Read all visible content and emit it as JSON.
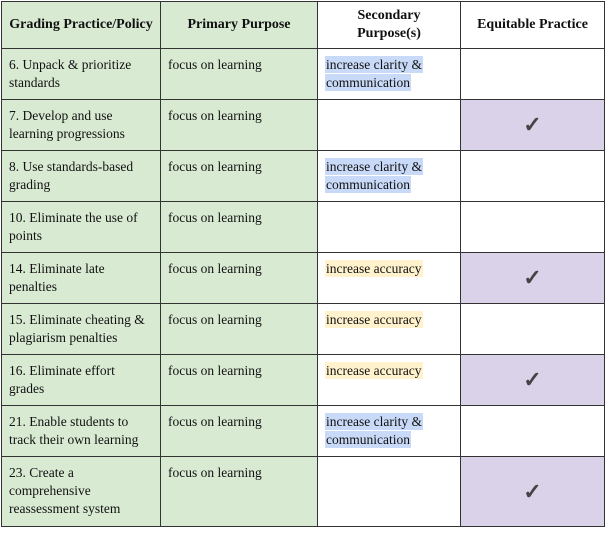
{
  "table": {
    "header": [
      "Grading Practice/Policy",
      "Primary Purpose",
      "Secondary Purpose(s)",
      "Equitable Practice"
    ],
    "rows": [
      {
        "policy": "6. Unpack & prioritize standards",
        "primary": "focus on learning",
        "secondary": "increase clarity & communication",
        "highlight": "#c9daf8",
        "equitable": null
      },
      {
        "policy": "7. Develop and use learning progressions",
        "primary": "focus on learning",
        "secondary": null,
        "highlight": null,
        "equitable": "✓"
      },
      {
        "policy": "8. Use standards-based grading",
        "primary": "focus on learning",
        "secondary": "increase clarity & communication",
        "highlight": "#c9daf8",
        "equitable": null
      },
      {
        "policy": "10. Eliminate the use of points",
        "primary": "focus on learning",
        "secondary": null,
        "highlight": null,
        "equitable": null
      },
      {
        "policy": "14. Eliminate late penalties",
        "primary": "focus on learning",
        "secondary": "increase accuracy",
        "highlight": "#fff2cc",
        "equitable": "✓"
      },
      {
        "policy": "15. Eliminate cheating & plagiarism penalties",
        "primary": "focus on learning",
        "secondary": "increase accuracy",
        "highlight": "#fff2cc",
        "equitable": null
      },
      {
        "policy": "16. Eliminate effort grades",
        "primary": "focus on learning",
        "secondary": "increase accuracy",
        "highlight": "#fff2cc",
        "equitable": "✓"
      },
      {
        "policy": "21. Enable students to track their own learning",
        "primary": "focus on learning",
        "secondary": "increase clarity & communication",
        "highlight": "#c9daf8",
        "equitable": null
      },
      {
        "policy": "23. Create a comprehensive reassessment system",
        "primary": "focus on learning",
        "secondary": null,
        "highlight": null,
        "equitable": "✓"
      }
    ],
    "header_color": "#d9ead3",
    "first_columns_color": "#d9ead3",
    "check_color": "#d9d2e9"
  }
}
